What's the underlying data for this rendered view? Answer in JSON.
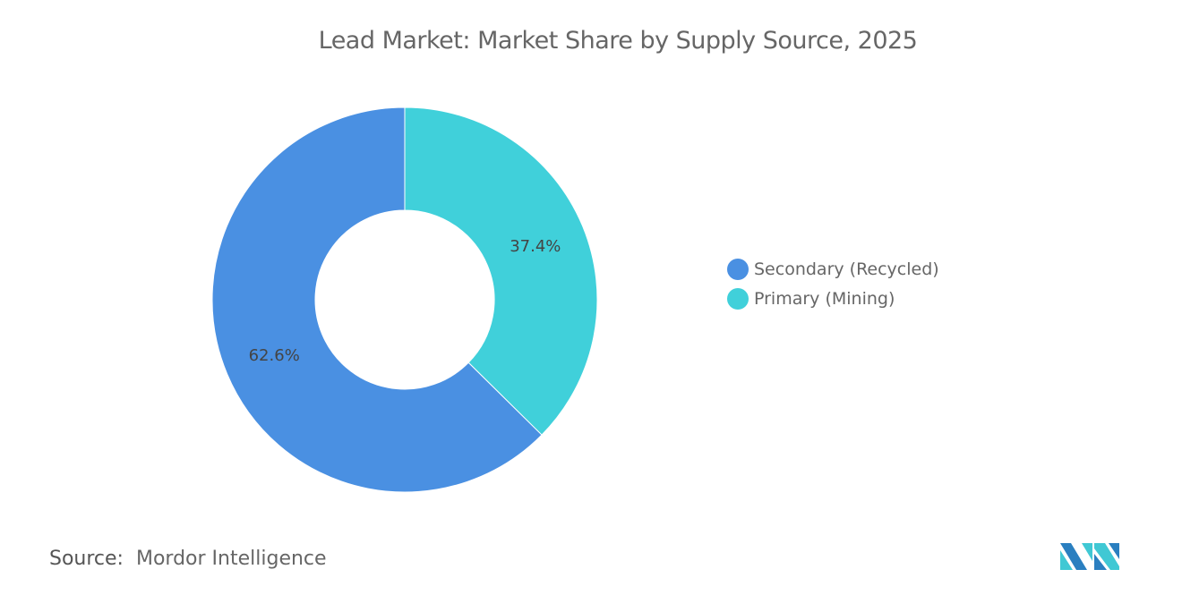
{
  "title": "Lead Market: Market Share by Supply Source, 2025",
  "chart_data": {
    "type": "pie",
    "donut": true,
    "title": "Lead Market: Market Share by Supply Source, 2025",
    "categories": [
      "Secondary (Recycled)",
      "Primary (Mining)"
    ],
    "values": [
      62.6,
      37.4
    ],
    "labels": [
      "62.6%",
      "37.4%"
    ],
    "colors": [
      "#4a90e2",
      "#40d0da"
    ],
    "legend": "right"
  },
  "source": {
    "label": "Source:",
    "value": "Mordor Intelligence"
  }
}
